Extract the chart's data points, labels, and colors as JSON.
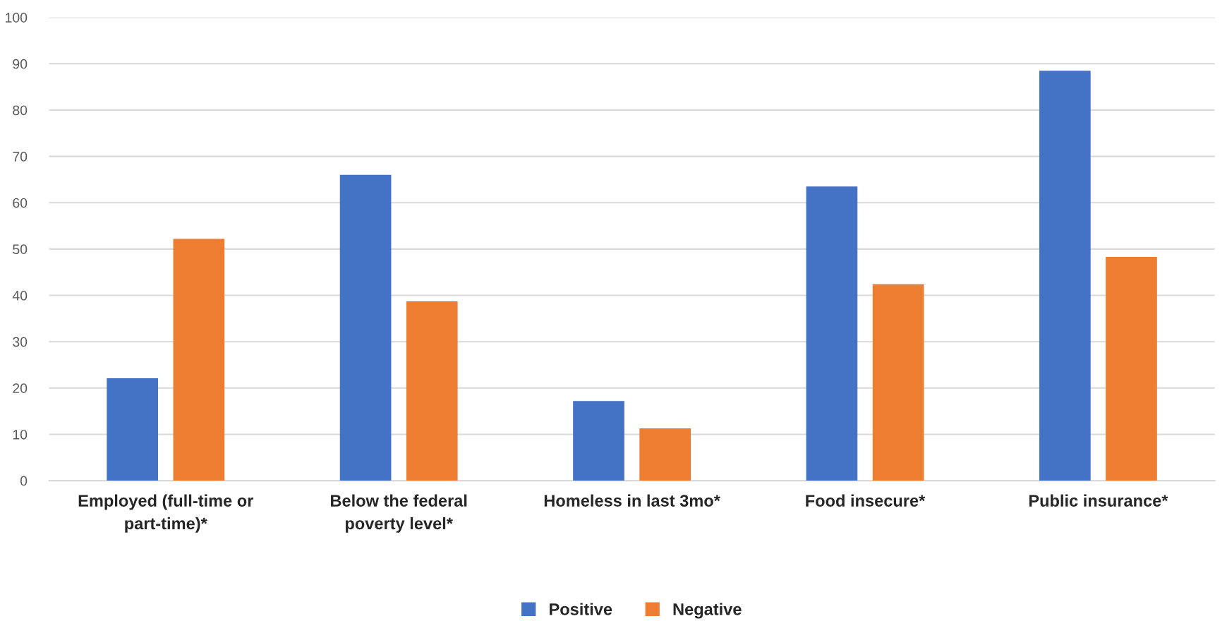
{
  "chart_data": {
    "type": "bar",
    "categories": [
      "Employed (full-time or part-time)*",
      "Below the federal poverty level*",
      "Homeless in last 3mo*",
      "Food insecure*",
      "Public insurance*"
    ],
    "series": [
      {
        "name": "Positive",
        "color": "#4472c4",
        "values": [
          22.1,
          66.0,
          17.2,
          63.5,
          88.5
        ]
      },
      {
        "name": "Negative",
        "color": "#ed7d31",
        "values": [
          52.2,
          38.7,
          11.3,
          42.4,
          48.3
        ]
      }
    ],
    "ylim": [
      0,
      100
    ],
    "yticks": [
      0,
      10,
      20,
      30,
      40,
      50,
      60,
      70,
      80,
      90,
      100
    ],
    "grid": "y",
    "legend": "bottom"
  }
}
